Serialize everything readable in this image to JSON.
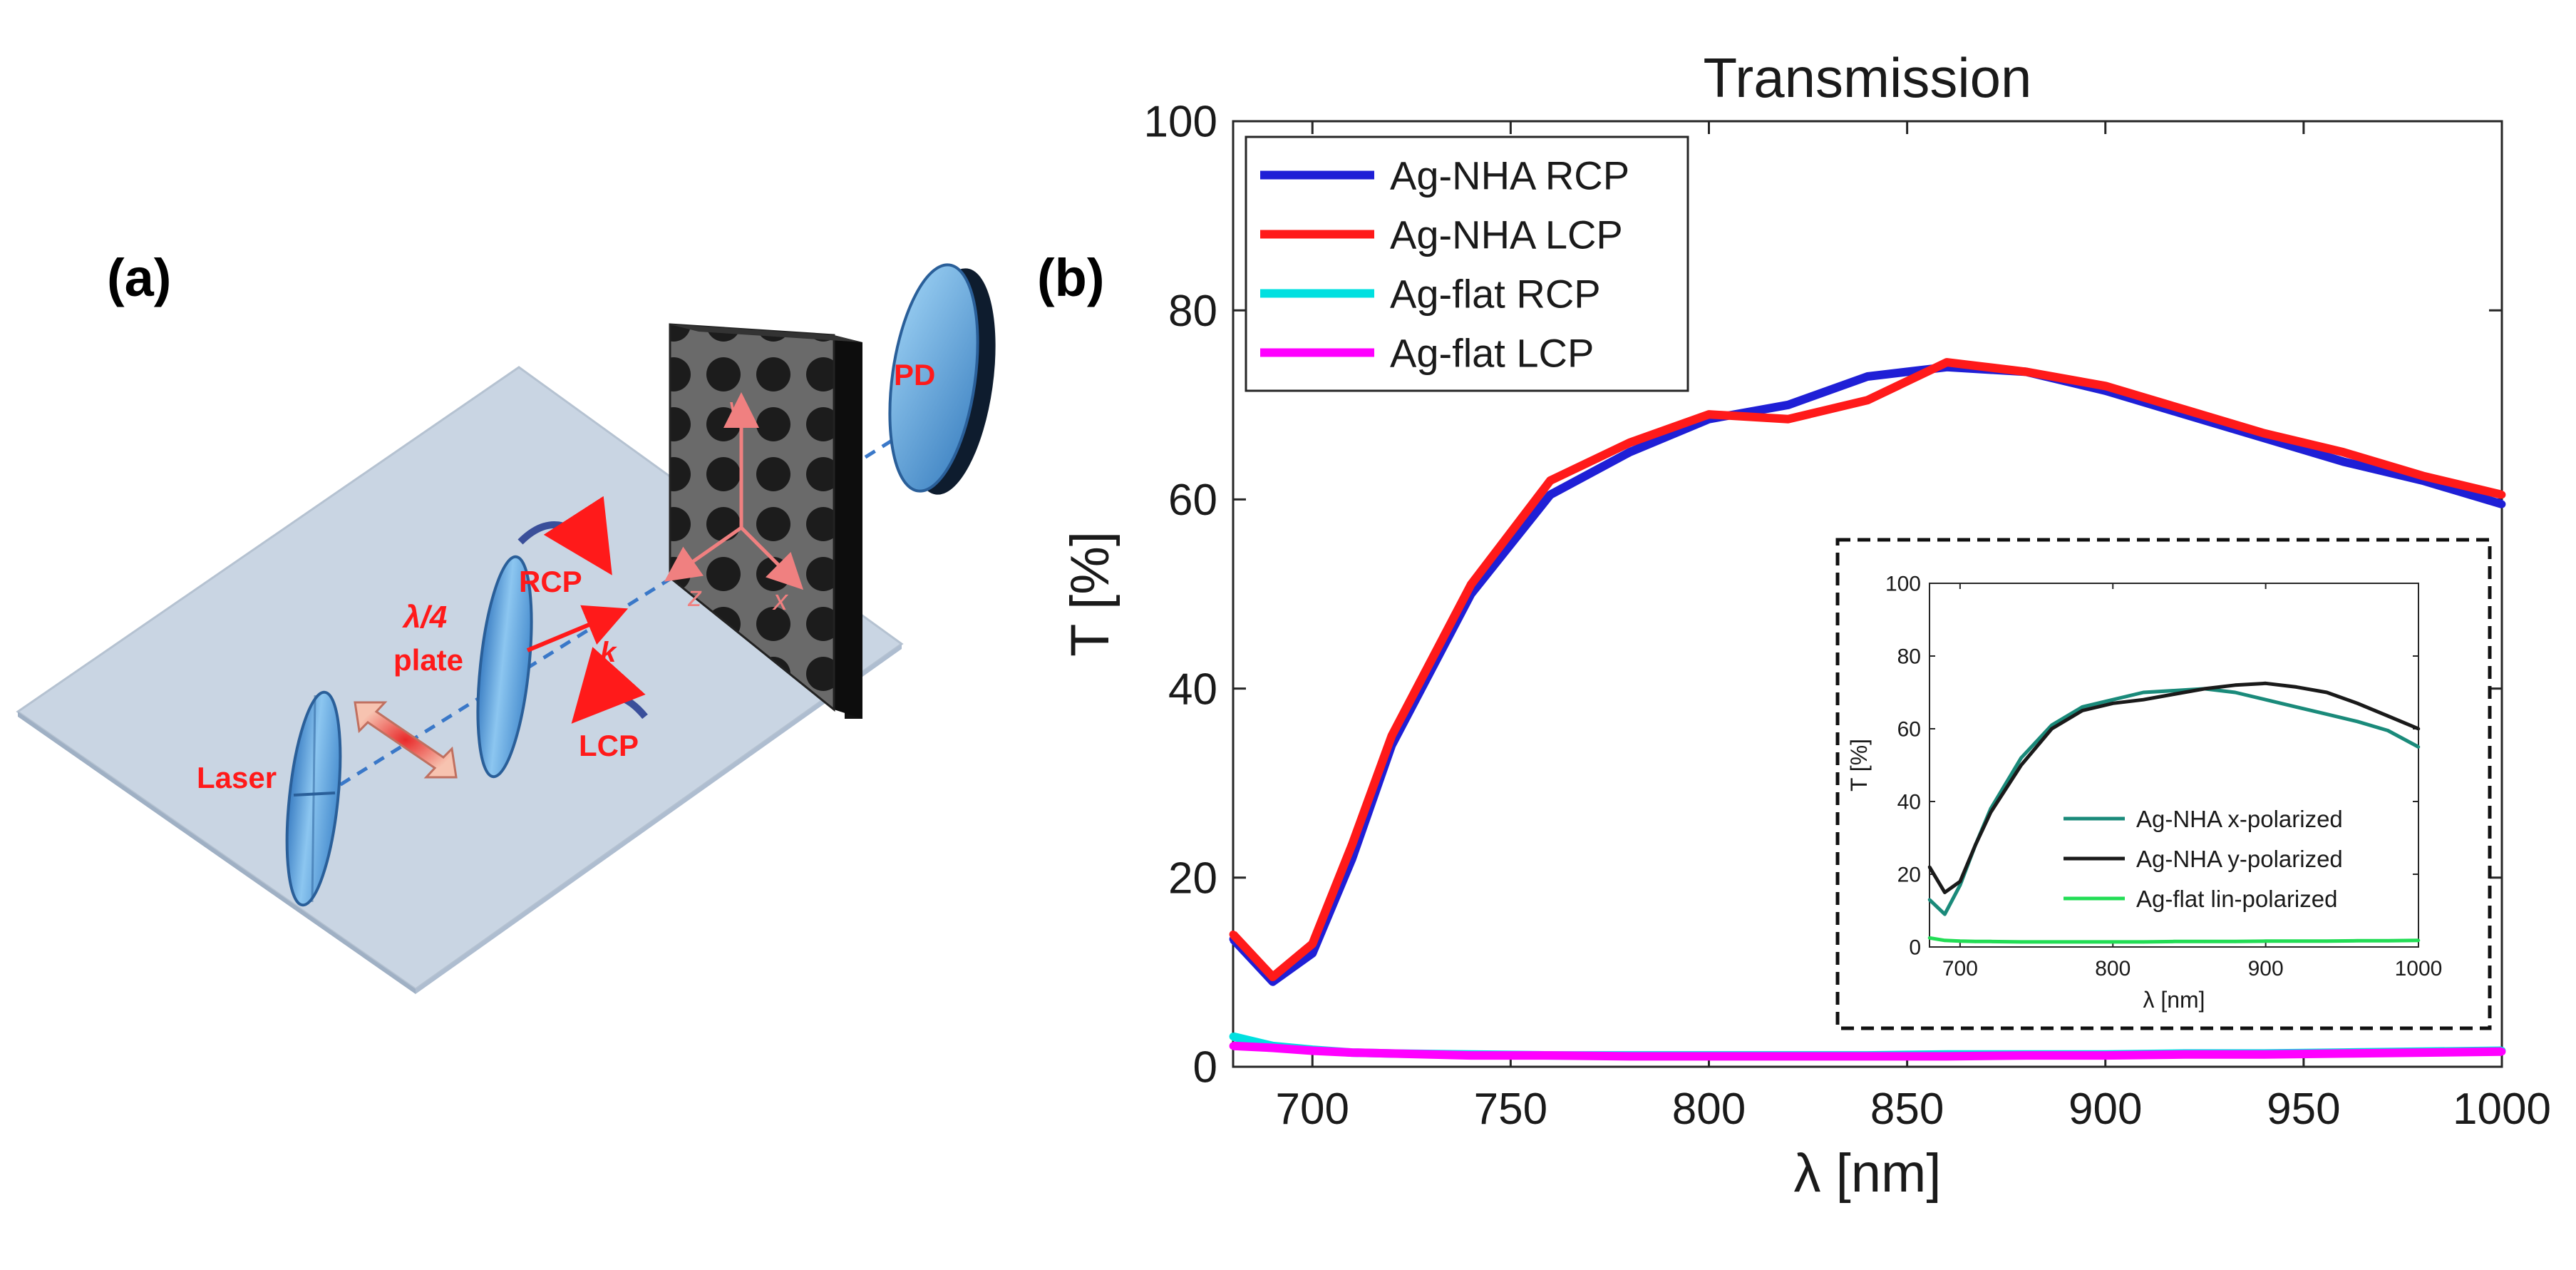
{
  "panel_a": {
    "label": "(a)",
    "laser_label": "Laser",
    "waveplate_label_1": "λ/4",
    "waveplate_label_2": "plate",
    "rcp_label": "RCP",
    "lcp_label": "LCP",
    "k_label": "k",
    "axis_x": "x",
    "axis_y": "y",
    "axis_z": "z",
    "detector_label": "PD",
    "colors": {
      "annotation": "#ff1a1a",
      "optic": "#6fb3e6",
      "plane": "#c9d5e3",
      "axes": "#f08080"
    }
  },
  "panel_b": {
    "label": "(b)"
  },
  "chart_data": [
    {
      "type": "line",
      "title": "Transmission",
      "xlabel": "λ [nm]",
      "ylabel": "T [%]",
      "xlim": [
        680,
        1000
      ],
      "ylim": [
        0,
        100
      ],
      "xticks": [
        700,
        750,
        800,
        850,
        900,
        950,
        1000
      ],
      "yticks": [
        0,
        20,
        40,
        60,
        80,
        100
      ],
      "grid": false,
      "legend_position": "top-left",
      "x": [
        680,
        690,
        700,
        710,
        720,
        740,
        760,
        780,
        800,
        820,
        840,
        860,
        880,
        900,
        920,
        940,
        960,
        980,
        1000
      ],
      "series": [
        {
          "name": "Ag-NHA RCP",
          "color": "#1f1fd6",
          "values": [
            13.5,
            9.0,
            12.0,
            22.0,
            34.0,
            50.0,
            60.5,
            65.0,
            68.5,
            70.0,
            73.0,
            74.0,
            73.5,
            71.5,
            69.0,
            66.5,
            64.0,
            62.0,
            59.5
          ]
        },
        {
          "name": "Ag-NHA LCP",
          "color": "#ff1a1a",
          "values": [
            14.0,
            9.5,
            13.0,
            23.5,
            35.0,
            51.0,
            62.0,
            66.0,
            69.0,
            68.5,
            70.5,
            74.5,
            73.5,
            72.0,
            69.5,
            67.0,
            65.0,
            62.5,
            60.5
          ]
        },
        {
          "name": "Ag-flat RCP",
          "color": "#00e0e0",
          "values": [
            3.2,
            2.2,
            1.8,
            1.5,
            1.4,
            1.3,
            1.2,
            1.2,
            1.2,
            1.2,
            1.2,
            1.3,
            1.3,
            1.3,
            1.4,
            1.4,
            1.5,
            1.6,
            1.7
          ]
        },
        {
          "name": "Ag-flat LCP",
          "color": "#ff00ff",
          "values": [
            2.2,
            2.0,
            1.7,
            1.5,
            1.4,
            1.2,
            1.2,
            1.1,
            1.1,
            1.1,
            1.1,
            1.1,
            1.2,
            1.2,
            1.3,
            1.3,
            1.4,
            1.5,
            1.6
          ]
        }
      ]
    },
    {
      "type": "line",
      "title": "",
      "xlabel": "λ [nm]",
      "ylabel": "T [%]",
      "xlim": [
        680,
        1000
      ],
      "ylim": [
        0,
        100
      ],
      "xticks": [
        700,
        800,
        900,
        1000
      ],
      "yticks": [
        0,
        20,
        40,
        60,
        80,
        100
      ],
      "grid": false,
      "legend_position": "bottom-right",
      "x": [
        680,
        690,
        700,
        710,
        720,
        740,
        760,
        780,
        800,
        820,
        840,
        860,
        880,
        900,
        920,
        940,
        960,
        980,
        1000
      ],
      "series": [
        {
          "name": "Ag-NHA x-polarized",
          "color": "#1a8a7a",
          "values": [
            13,
            9,
            17,
            28,
            38,
            52,
            61,
            66,
            68,
            70,
            70.5,
            71,
            70,
            68,
            66,
            64,
            62,
            59.5,
            55
          ]
        },
        {
          "name": "Ag-NHA y-polarized",
          "color": "#1a1a1a",
          "values": [
            22,
            15,
            18,
            28,
            37,
            50,
            60,
            65,
            67,
            68,
            69.5,
            71,
            72,
            72.5,
            71.5,
            70,
            67,
            63.5,
            60
          ]
        },
        {
          "name": "Ag-flat lin-polarized",
          "color": "#22dd55",
          "values": [
            2.5,
            1.8,
            1.6,
            1.5,
            1.5,
            1.4,
            1.4,
            1.4,
            1.4,
            1.4,
            1.5,
            1.5,
            1.5,
            1.6,
            1.6,
            1.6,
            1.7,
            1.7,
            1.8
          ]
        }
      ]
    }
  ]
}
